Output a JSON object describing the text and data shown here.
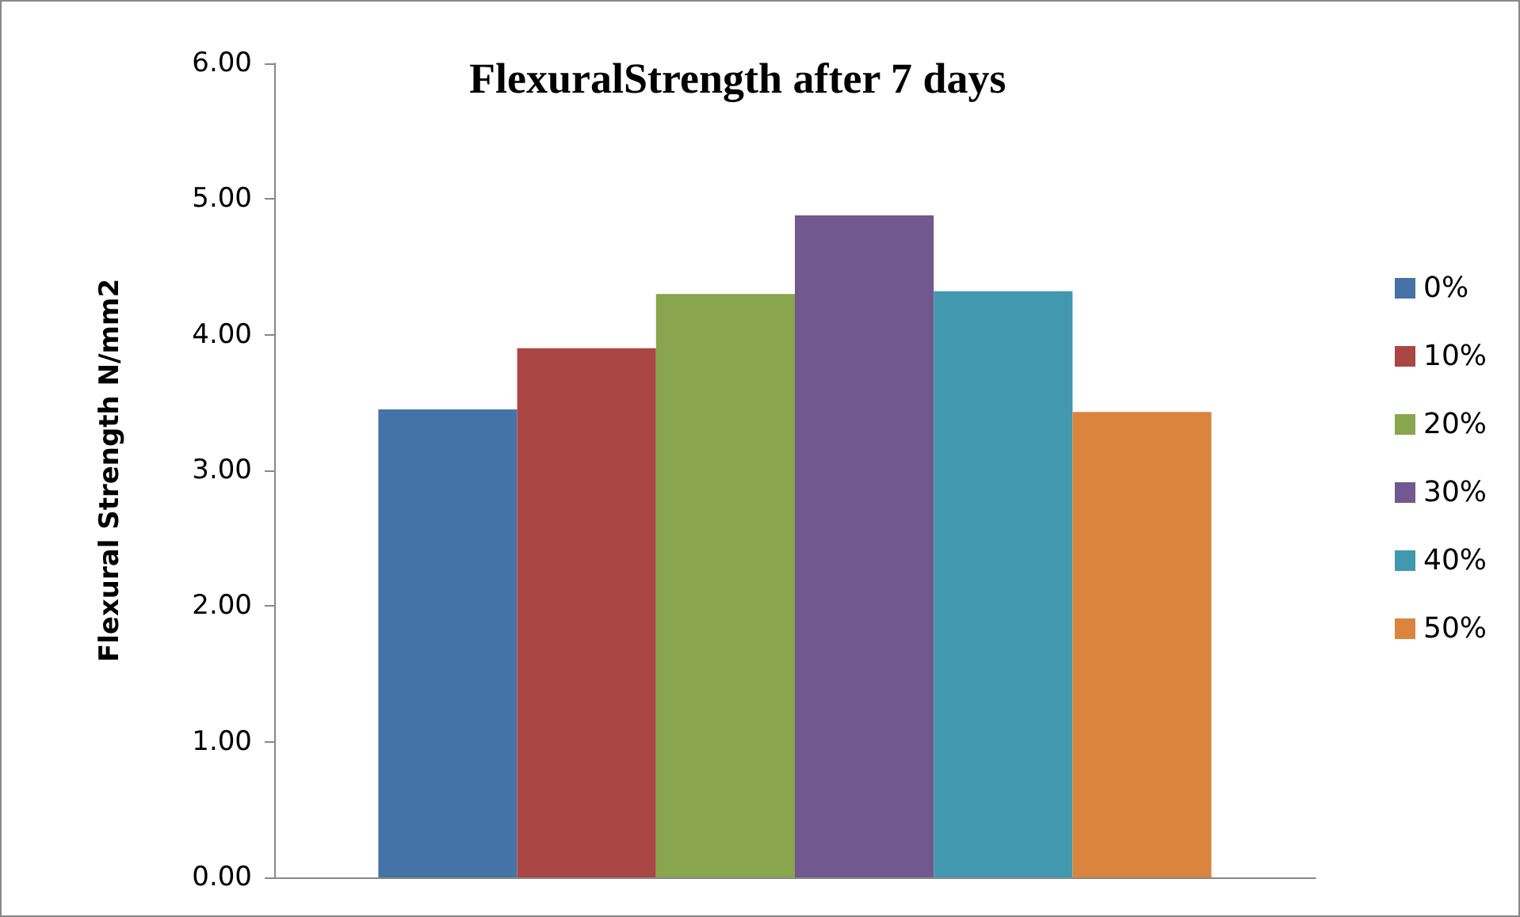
{
  "chart_data": {
    "type": "bar",
    "title": "FlexuralStrength after 7 days",
    "ylabel": "Flexural Strength N/mm2",
    "categories": [
      null
    ],
    "series": [
      {
        "name": "0%",
        "color": "#4572a7",
        "values": [
          3.45
        ]
      },
      {
        "name": "10%",
        "color": "#aa4643",
        "values": [
          3.9
        ]
      },
      {
        "name": "20%",
        "color": "#89a54e",
        "values": [
          4.3
        ]
      },
      {
        "name": "30%",
        "color": "#71588f",
        "values": [
          4.88
        ]
      },
      {
        "name": "40%",
        "color": "#4198af",
        "values": [
          4.32
        ]
      },
      {
        "name": "50%",
        "color": "#db843d",
        "values": [
          3.43
        ]
      }
    ],
    "ylim": [
      0,
      6
    ],
    "yticks": [
      {
        "value": 0,
        "label": "0.00"
      },
      {
        "value": 1,
        "label": "1.00"
      },
      {
        "value": 2,
        "label": "2.00"
      },
      {
        "value": 3,
        "label": "3.00"
      },
      {
        "value": 4,
        "label": "4.00"
      },
      {
        "value": 5,
        "label": "5.00"
      },
      {
        "value": 6,
        "label": "6.00"
      }
    ],
    "grid": false,
    "legend": "right"
  }
}
